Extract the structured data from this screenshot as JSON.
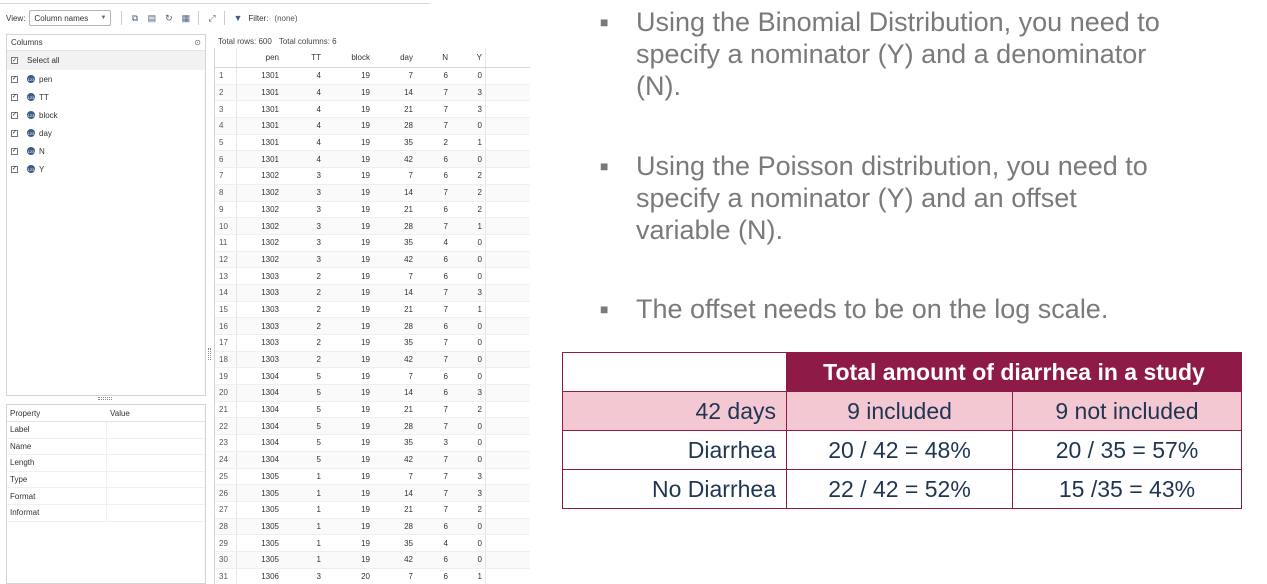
{
  "viewer": {
    "toolbar": {
      "view_label": "View:",
      "view_select": "Column names",
      "filter_label": "Filter:",
      "filter_value": "(none)"
    },
    "columns_panel": {
      "title": "Columns",
      "select_all": "Select all",
      "columns": [
        "pen",
        "TT",
        "block",
        "day",
        "N",
        "Y"
      ]
    },
    "properties_panel": {
      "headers": [
        "Property",
        "Value"
      ],
      "rows": [
        "Label",
        "Name",
        "Length",
        "Type",
        "Format",
        "Informat"
      ]
    },
    "info": {
      "total_rows": "Total rows: 600",
      "total_columns": "Total columns: 6"
    },
    "grid": {
      "headers": [
        "pen",
        "TT",
        "block",
        "day",
        "N",
        "Y"
      ],
      "rows": [
        [
          "1",
          "1301",
          "4",
          "19",
          "7",
          "6",
          "0"
        ],
        [
          "2",
          "1301",
          "4",
          "19",
          "14",
          "7",
          "3"
        ],
        [
          "3",
          "1301",
          "4",
          "19",
          "21",
          "7",
          "3"
        ],
        [
          "4",
          "1301",
          "4",
          "19",
          "28",
          "7",
          "0"
        ],
        [
          "5",
          "1301",
          "4",
          "19",
          "35",
          "2",
          "1"
        ],
        [
          "6",
          "1301",
          "4",
          "19",
          "42",
          "6",
          "0"
        ],
        [
          "7",
          "1302",
          "3",
          "19",
          "7",
          "6",
          "2"
        ],
        [
          "8",
          "1302",
          "3",
          "19",
          "14",
          "7",
          "2"
        ],
        [
          "9",
          "1302",
          "3",
          "19",
          "21",
          "6",
          "2"
        ],
        [
          "10",
          "1302",
          "3",
          "19",
          "28",
          "7",
          "1"
        ],
        [
          "11",
          "1302",
          "3",
          "19",
          "35",
          "4",
          "0"
        ],
        [
          "12",
          "1302",
          "3",
          "19",
          "42",
          "6",
          "0"
        ],
        [
          "13",
          "1303",
          "2",
          "19",
          "7",
          "6",
          "0"
        ],
        [
          "14",
          "1303",
          "2",
          "19",
          "14",
          "7",
          "3"
        ],
        [
          "15",
          "1303",
          "2",
          "19",
          "21",
          "7",
          "1"
        ],
        [
          "16",
          "1303",
          "2",
          "19",
          "28",
          "6",
          "0"
        ],
        [
          "17",
          "1303",
          "2",
          "19",
          "35",
          "7",
          "0"
        ],
        [
          "18",
          "1303",
          "2",
          "19",
          "42",
          "7",
          "0"
        ],
        [
          "19",
          "1304",
          "5",
          "19",
          "7",
          "6",
          "0"
        ],
        [
          "20",
          "1304",
          "5",
          "19",
          "14",
          "6",
          "3"
        ],
        [
          "21",
          "1304",
          "5",
          "19",
          "21",
          "7",
          "2"
        ],
        [
          "22",
          "1304",
          "5",
          "19",
          "28",
          "7",
          "0"
        ],
        [
          "23",
          "1304",
          "5",
          "19",
          "35",
          "3",
          "0"
        ],
        [
          "24",
          "1304",
          "5",
          "19",
          "42",
          "7",
          "0"
        ],
        [
          "25",
          "1305",
          "1",
          "19",
          "7",
          "7",
          "3"
        ],
        [
          "26",
          "1305",
          "1",
          "19",
          "14",
          "7",
          "3"
        ],
        [
          "27",
          "1305",
          "1",
          "19",
          "21",
          "7",
          "2"
        ],
        [
          "28",
          "1305",
          "1",
          "19",
          "28",
          "6",
          "0"
        ],
        [
          "29",
          "1305",
          "1",
          "19",
          "35",
          "4",
          "0"
        ],
        [
          "30",
          "1305",
          "1",
          "19",
          "42",
          "6",
          "0"
        ],
        [
          "31",
          "1306",
          "3",
          "20",
          "7",
          "6",
          "1"
        ]
      ]
    }
  },
  "slide": {
    "bullets": [
      "Using the Binomial Distribution, you need to\nspecify a nominator (Y) and a denominator\n(N).",
      "Using the Poisson distribution, you need to\nspecify a nominator (Y) and an offset\nvariable (N).",
      "The offset needs to be on the log scale."
    ],
    "table": {
      "title": "Total amount of diarrhea in a study",
      "header_row": [
        "42 days",
        "9 included",
        "9 not included"
      ],
      "rows": [
        [
          "Diarrhea",
          "20 / 42 = 48%",
          "20 / 35 = 57%"
        ],
        [
          "No Diarrhea",
          "22 / 42 = 52%",
          "15 /35 = 43%"
        ]
      ]
    }
  }
}
